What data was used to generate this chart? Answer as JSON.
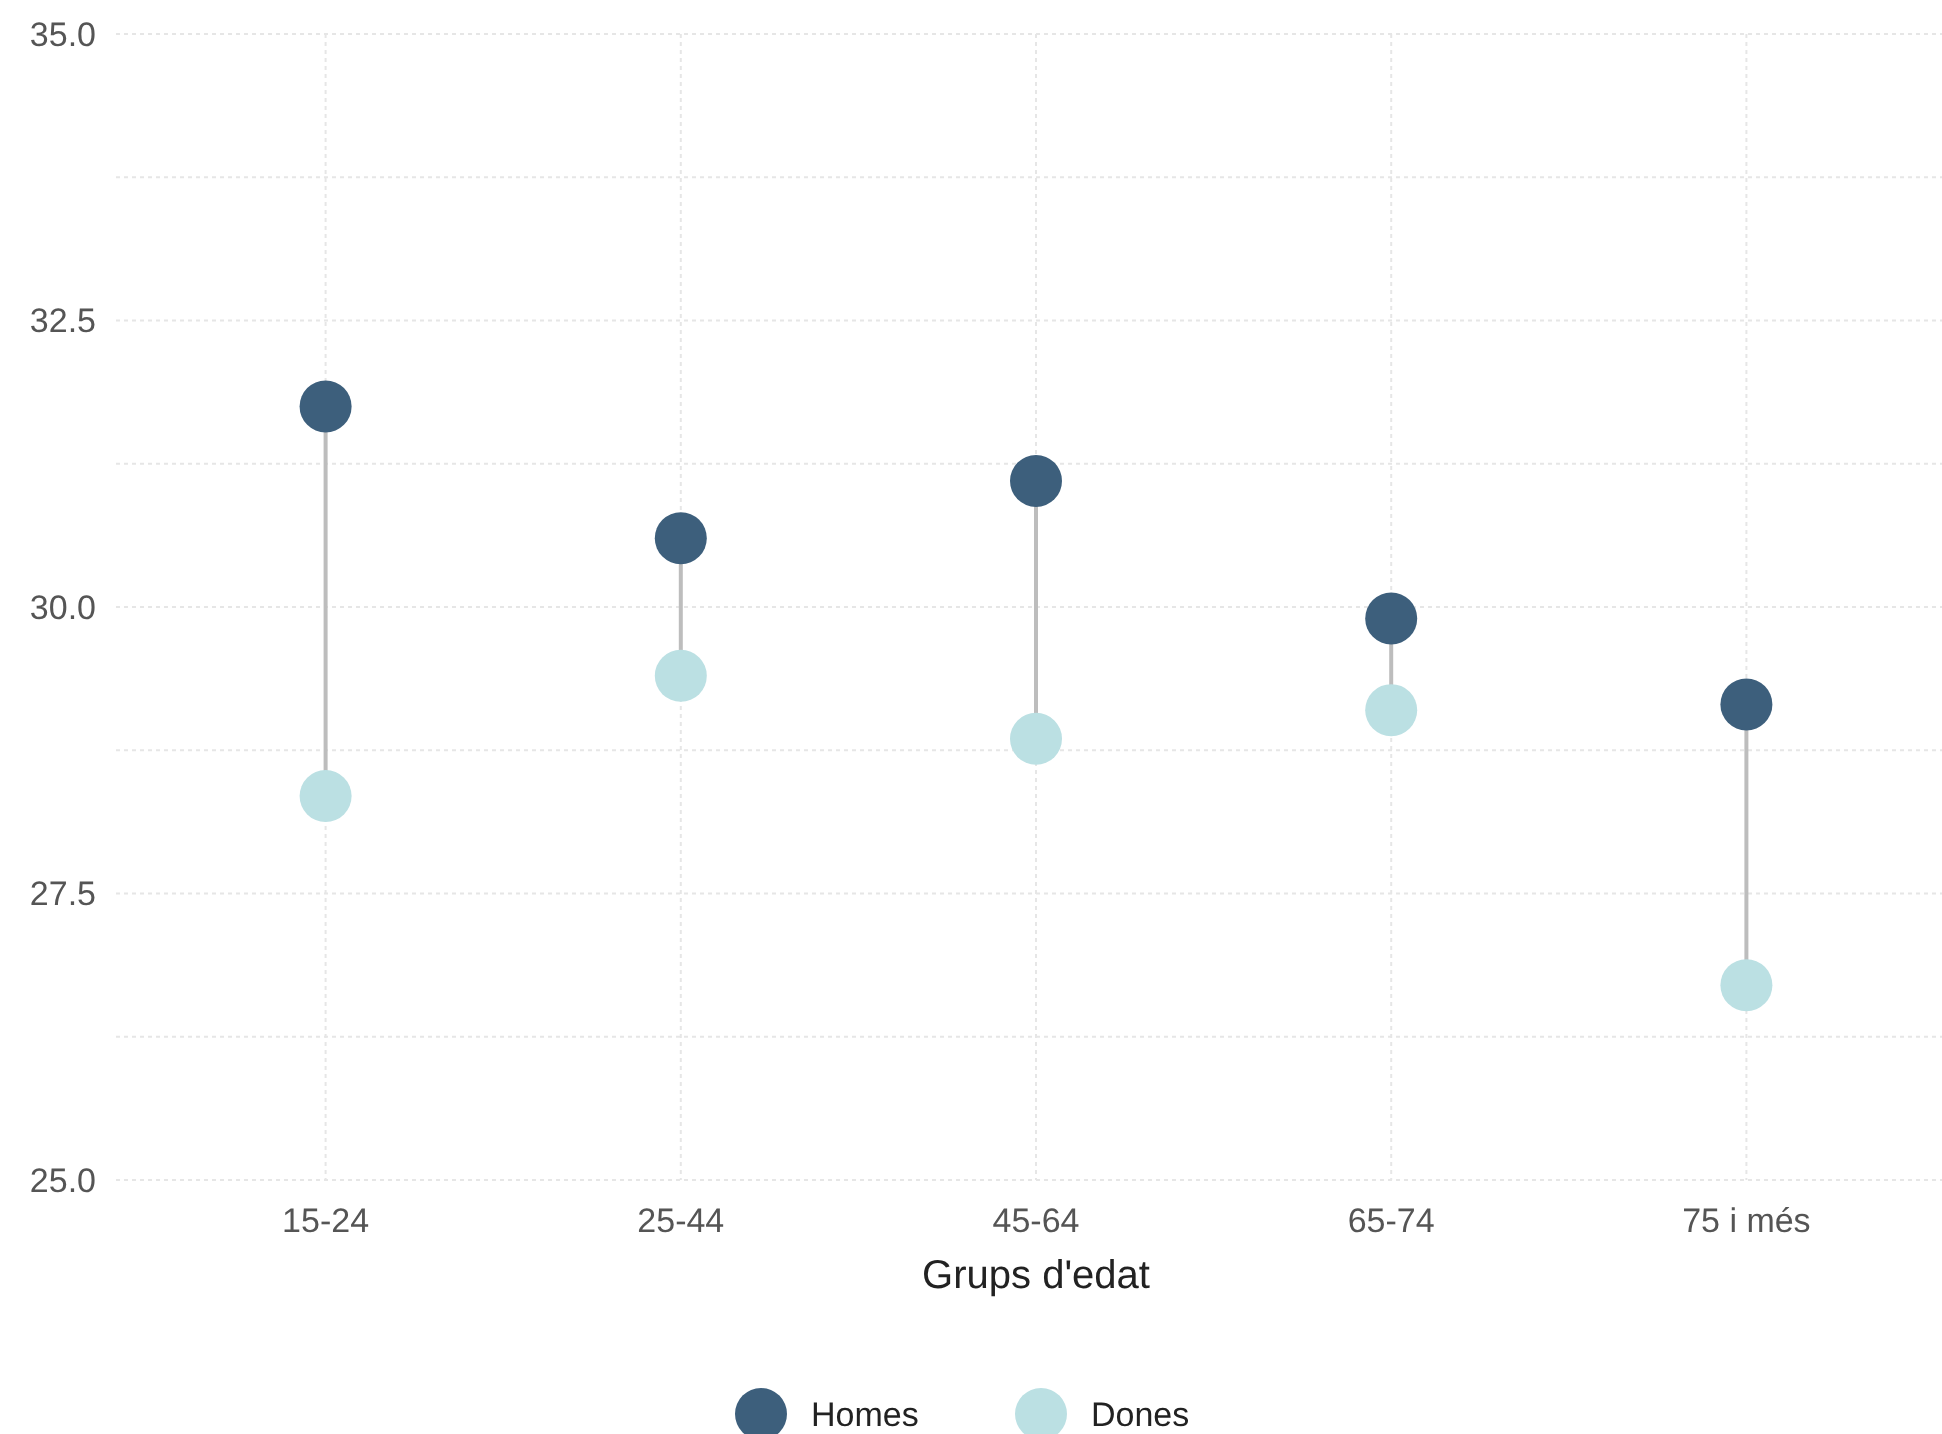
{
  "chart_data": {
    "type": "scatter",
    "xlabel": "Grups d'edat",
    "categories": [
      "15-24",
      "25-44",
      "45-64",
      "65-74",
      "75 i més"
    ],
    "series": [
      {
        "name": "Homes",
        "color": "#3d5f7c",
        "values": [
          31.75,
          30.6,
          31.1,
          29.9,
          29.15
        ]
      },
      {
        "name": "Dones",
        "color": "#bbe0e3",
        "values": [
          28.35,
          29.4,
          28.85,
          29.1,
          26.7
        ]
      }
    ],
    "ylim": [
      25,
      35
    ],
    "yticks": [
      {
        "value": 25,
        "label": "25.0"
      },
      {
        "value": 27.5,
        "label": "27.5"
      },
      {
        "value": 30,
        "label": "30.0"
      },
      {
        "value": 32.5,
        "label": "32.5"
      },
      {
        "value": 35,
        "label": "35.0"
      }
    ],
    "grid": true,
    "legend": "bottom",
    "marker": "circle"
  }
}
